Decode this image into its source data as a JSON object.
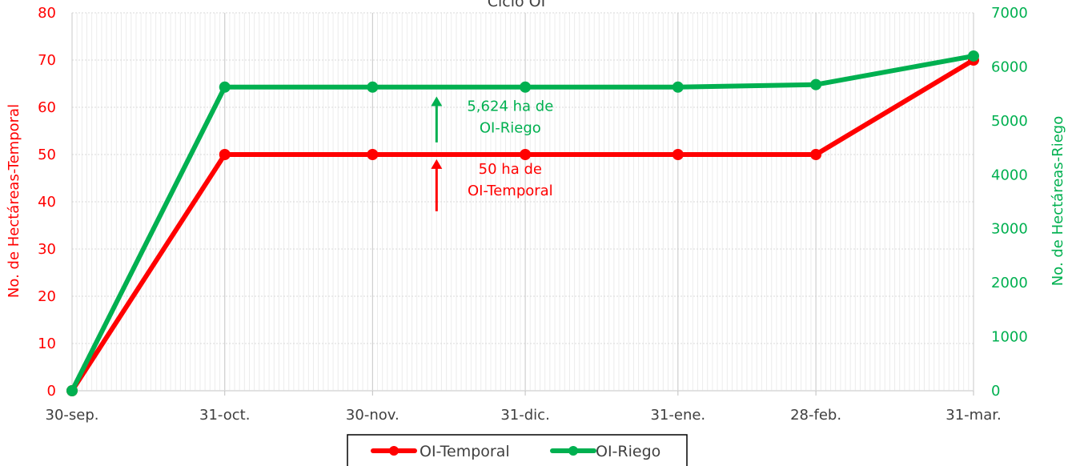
{
  "chart_data": {
    "type": "line",
    "title": "Ciclo OI",
    "categories": [
      "30-sep.",
      "31-oct.",
      "30-nov.",
      "31-dic.",
      "31-ene.",
      "28-feb.",
      "31-mar."
    ],
    "x_dates": [
      "2023-09-30",
      "2023-10-31",
      "2023-11-30",
      "2023-12-31",
      "2024-01-31",
      "2024-02-28",
      "2024-03-31"
    ],
    "ylabel_left": "No. de Hectáreas-Temporal",
    "ylabel_right": "No. de Hectáreas-Riego",
    "ylim_left": [
      0,
      80
    ],
    "yticks_left": [
      0,
      10,
      20,
      30,
      40,
      50,
      60,
      70,
      80
    ],
    "ylim_right": [
      0,
      7000
    ],
    "yticks_right": [
      0,
      1000,
      2000,
      3000,
      4000,
      5000,
      6000,
      7000
    ],
    "grid": true,
    "legend_position": "bottom",
    "series": [
      {
        "name": "OI-Temporal",
        "axis": "left",
        "color": "#ff0000",
        "values": [
          0,
          50,
          50,
          50,
          50,
          50,
          70
        ]
      },
      {
        "name": "OI-Riego",
        "axis": "right",
        "color": "#00b050",
        "values": [
          0,
          5624,
          5624,
          5624,
          5624,
          5670,
          6200
        ]
      }
    ],
    "annotations": [
      {
        "lines": [
          "5,624 ha de",
          "OI-Riego"
        ],
        "color": "#00b050",
        "axis": "right",
        "arrow_from": 4600,
        "arrow_to": 5450,
        "date": "2023-12-13"
      },
      {
        "lines": [
          "50 ha de",
          "OI-Temporal"
        ],
        "color": "#ff0000",
        "axis": "left",
        "arrow_from": 38,
        "arrow_to": 49,
        "date": "2023-12-13"
      }
    ]
  }
}
